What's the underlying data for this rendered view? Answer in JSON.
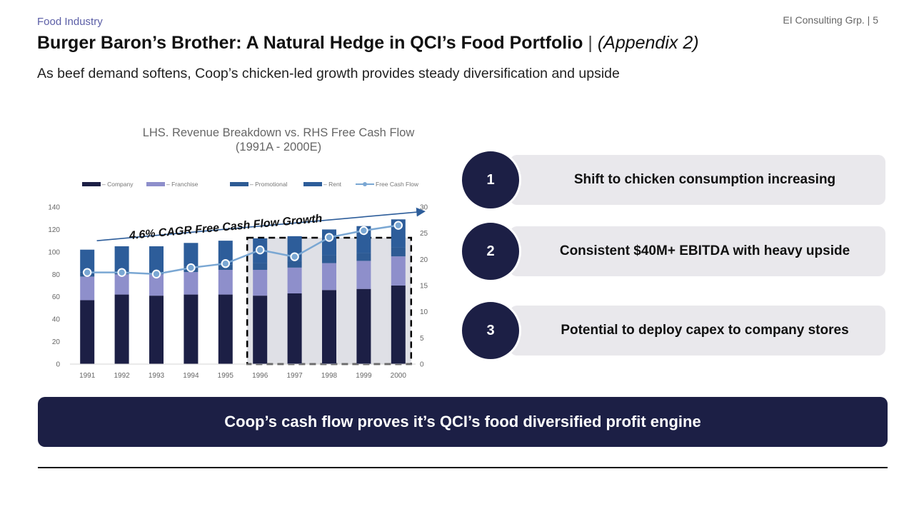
{
  "header": {
    "section_label": "Food Industry",
    "page_ref": "EI Consulting Grp. | 5",
    "title": "Burger Baron’s Brother: A Natural Hedge in QCI’s Food Portfolio",
    "title_separator": "|",
    "title_suffix": "(Appendix 2)",
    "subtitle": "As beef demand softens, Coop’s chicken-led growth provides steady diversification and upside"
  },
  "chart_data": {
    "type": "bar",
    "stacked": true,
    "title_line1": "LHS. Revenue Breakdown vs. RHS Free Cash Flow",
    "title_line2": "(1991A - 2000E)",
    "categories": [
      "1991",
      "1992",
      "1993",
      "1994",
      "1995",
      "1996",
      "1997",
      "1998",
      "1999",
      "2000"
    ],
    "series": [
      {
        "name": "– Company",
        "values": [
          57,
          62,
          61,
          62,
          62,
          61,
          63,
          66,
          67,
          70
        ],
        "color": "#1c1f45"
      },
      {
        "name": "– Franchise",
        "values": [
          21,
          18,
          19,
          20,
          22,
          23,
          23,
          24,
          25,
          26
        ],
        "color": "#8e8fcb"
      },
      {
        "name": "– Promotional",
        "values": [
          4,
          4,
          4,
          5,
          5,
          6,
          6,
          7,
          7,
          8
        ],
        "color": "#2e5b94"
      },
      {
        "name": "– Rent",
        "values": [
          20,
          21,
          21,
          21,
          21,
          22,
          22,
          23,
          24,
          25
        ],
        "color": "#2d5d9a"
      }
    ],
    "line_series": {
      "name": "Free Cash Flow",
      "values": [
        17.5,
        17.5,
        17.2,
        18.4,
        19.2,
        21.8,
        20.5,
        24.2,
        25.5,
        26.5
      ],
      "color": "#7aa7d3",
      "axis": "right"
    },
    "y_left": {
      "min": 0,
      "max": 140,
      "ticks": [
        "0",
        "20",
        "40",
        "60",
        "80",
        "100",
        "120",
        "140"
      ]
    },
    "y_right": {
      "min": 0,
      "max": 30,
      "ticks": [
        "0",
        "5",
        "10",
        "15",
        "20",
        "25",
        "30"
      ]
    },
    "annotation": "4.6% CAGR Free Cash Flow Growth",
    "highlight_range": [
      "1996",
      "2000"
    ],
    "legend_position": "top"
  },
  "key_points": [
    {
      "number": "1",
      "text": "Shift to chicken consumption increasing"
    },
    {
      "number": "2",
      "text": "Consistent $40M+ EBITDA with heavy upside"
    },
    {
      "number": "3",
      "text": "Potential to deploy capex to company stores"
    }
  ],
  "banner": {
    "text": "Coop’s cash flow proves it’s QCI’s food diversified profit engine"
  },
  "colors": {
    "navy": "#1c1f45",
    "lavender": "#8e8fcb",
    "blue": "#2d5d9a",
    "line": "#7aa7d3",
    "pill": "#e9e8ec"
  }
}
